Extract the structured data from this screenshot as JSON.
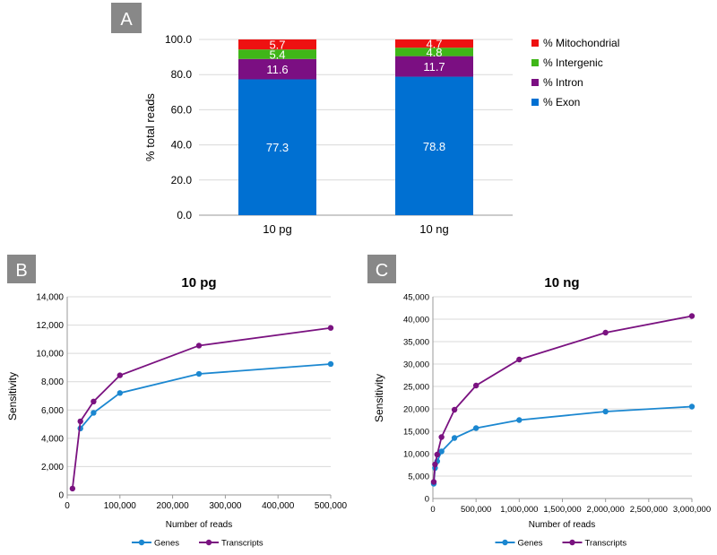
{
  "panels": {
    "a": {
      "label": "A"
    },
    "b": {
      "label": "B"
    },
    "c": {
      "label": "C"
    }
  },
  "colors": {
    "exon": "#0070d2",
    "intron": "#7b0f82",
    "intergenic": "#3fb618",
    "mitochondrial": "#ee1111",
    "genes": "#1b87d0",
    "transcripts": "#7a1280",
    "panel_label_bg": "#888888",
    "grid": "#d9d9d9",
    "axis": "#9a9a9a"
  },
  "chart_data": [
    {
      "id": "stacked",
      "type": "bar",
      "stacked": true,
      "title": "",
      "xlabel": "",
      "ylabel": "% total reads",
      "ylim": [
        0,
        100
      ],
      "yticks": [
        "0.0",
        "20.0",
        "40.0",
        "60.0",
        "80.0",
        "100.0"
      ],
      "categories": [
        "10 pg",
        "10 ng"
      ],
      "series": [
        {
          "name": "% Exon",
          "key": "exon",
          "values": [
            77.3,
            78.8
          ],
          "labels": [
            "77.3",
            "78.8"
          ]
        },
        {
          "name": "% Intron",
          "key": "intron",
          "values": [
            11.6,
            11.7
          ],
          "labels": [
            "11.6",
            "11.7"
          ]
        },
        {
          "name": "% Intergenic",
          "key": "intergenic",
          "values": [
            5.4,
            4.8
          ],
          "labels": [
            "5.4",
            "4.8"
          ]
        },
        {
          "name": "% Mitochondrial",
          "key": "mitochondrial",
          "values": [
            5.7,
            4.7
          ],
          "labels": [
            "5.7",
            "4.7"
          ]
        }
      ],
      "legend": {
        "placement": "right",
        "order": [
          "mitochondrial",
          "intergenic",
          "intron",
          "exon"
        ]
      },
      "grid": true
    },
    {
      "id": "pg",
      "type": "line",
      "title": "10 pg",
      "xlabel": "Number of reads",
      "ylabel": "Sensitivity",
      "xlim": [
        0,
        500000
      ],
      "ylim": [
        0,
        14000
      ],
      "xticks": [
        "0",
        "100,000",
        "200,000",
        "300,000",
        "400,000",
        "500,000"
      ],
      "yticks": [
        "0",
        "2,000",
        "4,000",
        "6,000",
        "8,000",
        "10,000",
        "12,000",
        "14,000"
      ],
      "series": [
        {
          "name": "Genes",
          "key": "genes",
          "points": [
            [
              25000,
              4700
            ],
            [
              50000,
              5800
            ],
            [
              100000,
              7200
            ],
            [
              250000,
              8550
            ],
            [
              500000,
              9250
            ]
          ]
        },
        {
          "name": "Transcripts",
          "key": "transcripts",
          "points": [
            [
              10000,
              450
            ],
            [
              25000,
              5200
            ],
            [
              50000,
              6600
            ],
            [
              100000,
              8450
            ],
            [
              250000,
              10550
            ],
            [
              500000,
              11800
            ]
          ]
        }
      ],
      "legend": {
        "placement": "bottom"
      },
      "grid": true
    },
    {
      "id": "ng",
      "type": "line",
      "title": "10 ng",
      "xlabel": "Number of reads",
      "ylabel": "Sensitivity",
      "xlim": [
        0,
        3000000
      ],
      "ylim": [
        0,
        45000
      ],
      "xticks": [
        "0",
        "500,000",
        "1,000,000",
        "1,500,000",
        "2,000,000",
        "2,500,000",
        "3,000,000"
      ],
      "yticks": [
        "0",
        "5,000",
        "10,000",
        "15,000",
        "20,000",
        "25,000",
        "30,000",
        "35,000",
        "40,000",
        "45,000"
      ],
      "series": [
        {
          "name": "Genes",
          "key": "genes",
          "points": [
            [
              10000,
              3300
            ],
            [
              25000,
              6800
            ],
            [
              50000,
              8300
            ],
            [
              100000,
              10500
            ],
            [
              250000,
              13500
            ],
            [
              500000,
              15700
            ],
            [
              1000000,
              17500
            ],
            [
              2000000,
              19400
            ],
            [
              3000000,
              20500
            ]
          ]
        },
        {
          "name": "Transcripts",
          "key": "transcripts",
          "points": [
            [
              10000,
              3700
            ],
            [
              25000,
              7600
            ],
            [
              50000,
              9800
            ],
            [
              100000,
              13700
            ],
            [
              250000,
              19800
            ],
            [
              500000,
              25200
            ],
            [
              1000000,
              31000
            ],
            [
              2000000,
              37000
            ],
            [
              3000000,
              40700
            ]
          ]
        }
      ],
      "legend": {
        "placement": "bottom"
      },
      "grid": true
    }
  ]
}
